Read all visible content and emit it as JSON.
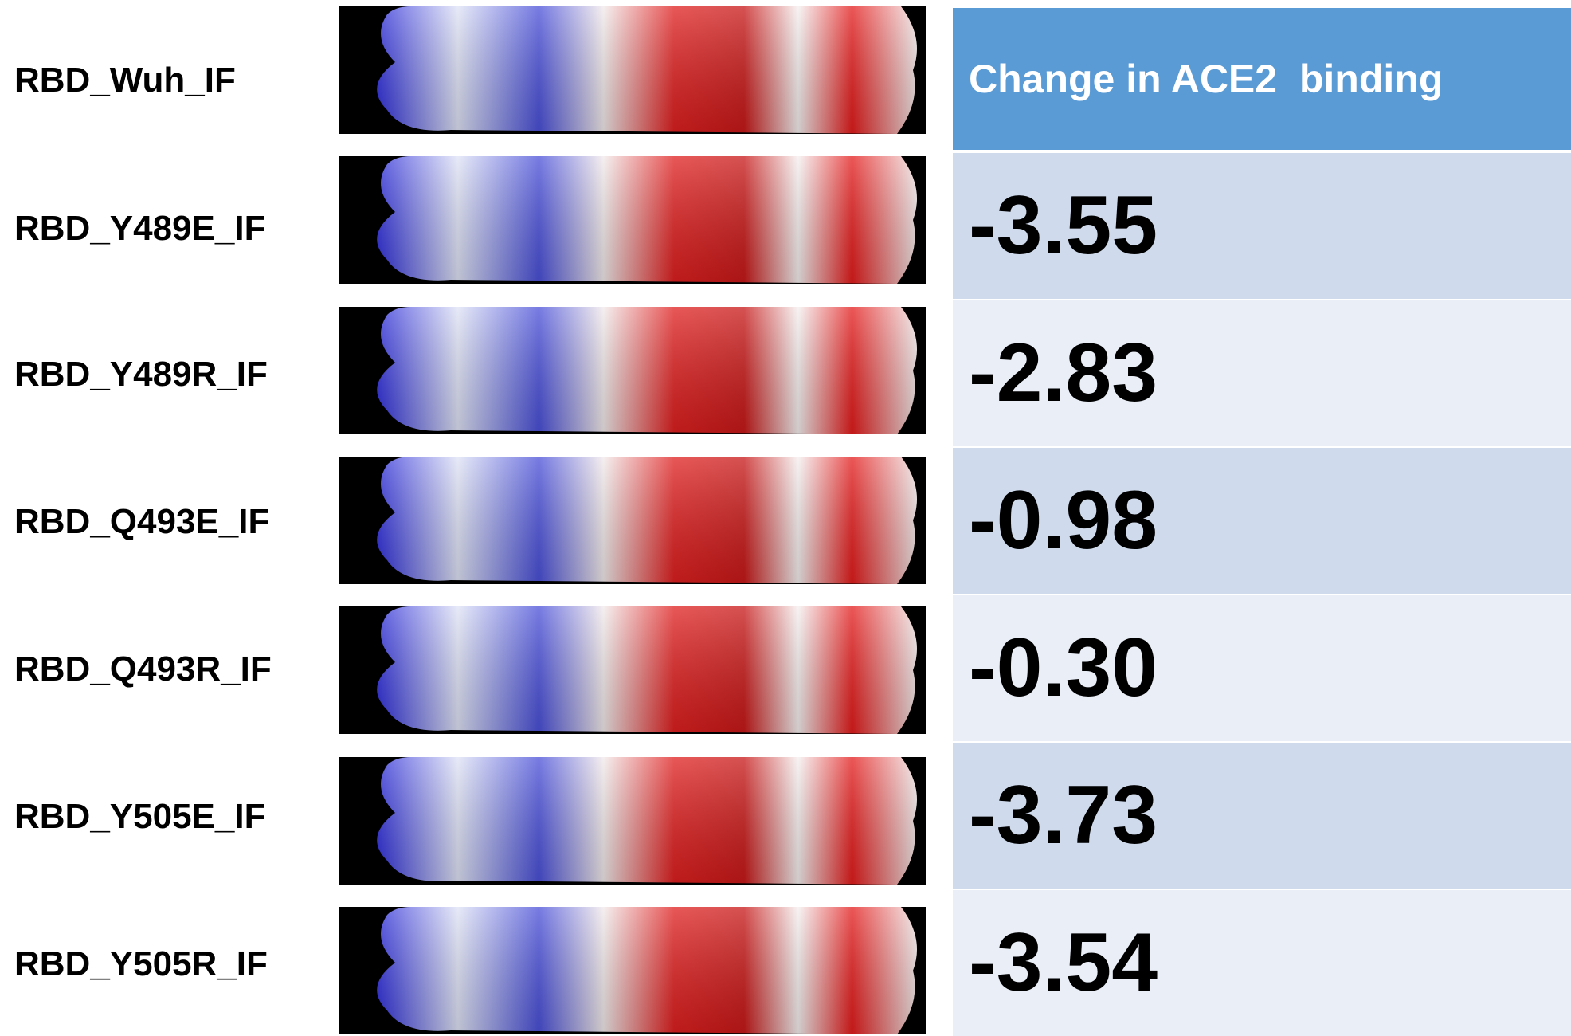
{
  "labels": [
    "RBD_Wuh_IF",
    "RBD_Y489E_IF",
    "RBD_Y489R_IF",
    "RBD_Q493E_IF",
    "RBD_Q493R_IF",
    "RBD_Y505E_IF",
    "RBD_Y505R_IF"
  ],
  "table": {
    "header": "Change in ACE2  binding",
    "rows": [
      "-3.55",
      "-2.83",
      "-0.98",
      "-0.30",
      "-3.73",
      "-3.54"
    ]
  }
}
